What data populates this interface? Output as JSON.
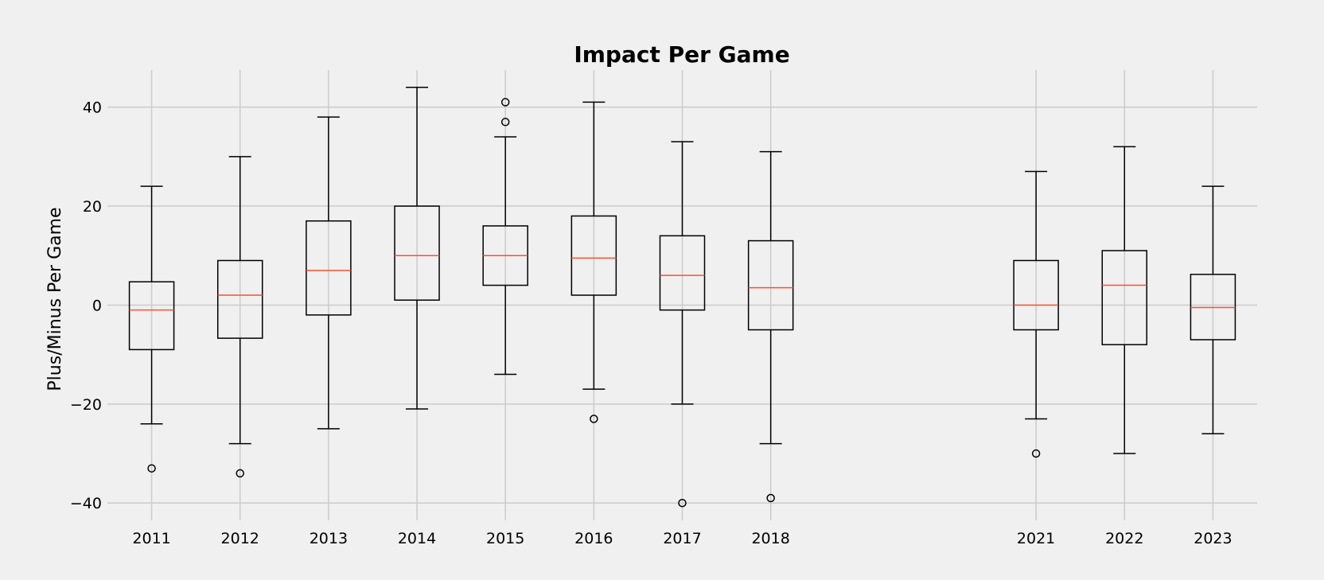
{
  "chart_data": {
    "type": "boxplot",
    "title": "Impact Per Game",
    "xlabel": "",
    "ylabel": "Plus/Minus Per Game",
    "ylim": [
      -43.5,
      47.5
    ],
    "xlim": [
      2010.5,
      2023.5
    ],
    "yticks": [
      -40,
      -20,
      0,
      20,
      40
    ],
    "ytick_labels": [
      "−40",
      "−20",
      "0",
      "20",
      "40"
    ],
    "grid": true,
    "colors": {
      "background": "#f0f0f0",
      "grid": "#cbcbcb",
      "median": "#fc4f30",
      "box": "#000000"
    },
    "boxes": [
      {
        "label": "2011",
        "x": 2011,
        "whislo": -24,
        "q1": -9,
        "med": -1,
        "q3": 4.7,
        "whishi": 24,
        "fliers": [
          -33
        ]
      },
      {
        "label": "2012",
        "x": 2012,
        "whislo": -28,
        "q1": -6.7,
        "med": 2,
        "q3": 9,
        "whishi": 30,
        "fliers": [
          -34
        ]
      },
      {
        "label": "2013",
        "x": 2013,
        "whislo": -25,
        "q1": -2,
        "med": 7,
        "q3": 17,
        "whishi": 38,
        "fliers": []
      },
      {
        "label": "2014",
        "x": 2014,
        "whislo": -21,
        "q1": 1,
        "med": 10,
        "q3": 20,
        "whishi": 44,
        "fliers": []
      },
      {
        "label": "2015",
        "x": 2015,
        "whislo": -14,
        "q1": 4,
        "med": 10,
        "q3": 16,
        "whishi": 34,
        "fliers": [
          37,
          41
        ]
      },
      {
        "label": "2016",
        "x": 2016,
        "whislo": -17,
        "q1": 2,
        "med": 9.5,
        "q3": 18,
        "whishi": 41,
        "fliers": [
          -23
        ]
      },
      {
        "label": "2017",
        "x": 2017,
        "whislo": -20,
        "q1": -1,
        "med": 6,
        "q3": 14,
        "whishi": 33,
        "fliers": [
          -40
        ]
      },
      {
        "label": "2018",
        "x": 2018,
        "whislo": -28,
        "q1": -5,
        "med": 3.5,
        "q3": 13,
        "whishi": 31,
        "fliers": [
          -39
        ]
      },
      {
        "label": "2021",
        "x": 2021,
        "whislo": -23,
        "q1": -5,
        "med": 0,
        "q3": 9,
        "whishi": 27,
        "fliers": [
          -30
        ]
      },
      {
        "label": "2022",
        "x": 2022,
        "whislo": -30,
        "q1": -8,
        "med": 4,
        "q3": 11,
        "whishi": 32,
        "fliers": []
      },
      {
        "label": "2023",
        "x": 2023,
        "whislo": -26,
        "q1": -7,
        "med": -0.5,
        "q3": 6.2,
        "whishi": 24,
        "fliers": []
      }
    ]
  }
}
